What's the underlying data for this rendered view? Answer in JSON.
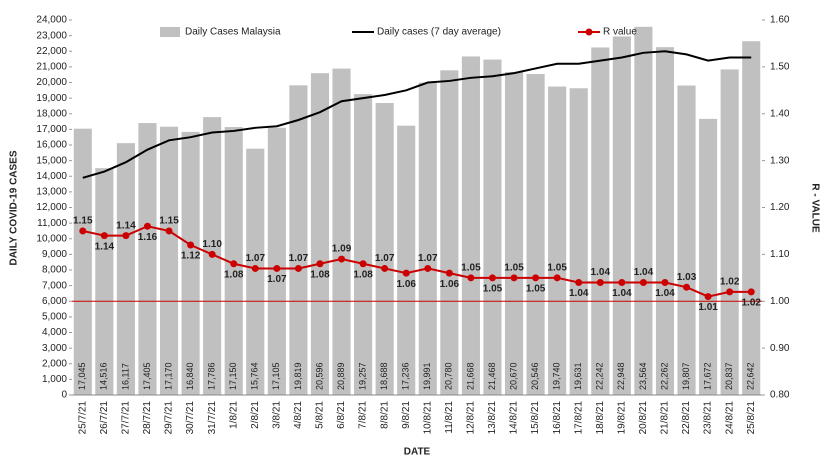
{
  "chart_data": {
    "type": "combo",
    "categories": [
      "25/7/21",
      "26/7/21",
      "27/7/21",
      "28/7/21",
      "29/7/21",
      "30/7/21",
      "31/7/21",
      "1/8/21",
      "2/8/21",
      "3/8/21",
      "4/8/21",
      "5/8/21",
      "6/8/21",
      "7/8/21",
      "8/8/21",
      "9/8/21",
      "10/8/21",
      "11/8/21",
      "12/8/21",
      "13/8/21",
      "14/8/21",
      "15/8/21",
      "16/8/21",
      "17/8/21",
      "18/8/21",
      "19/8/21",
      "20/8/21",
      "21/8/21",
      "22/8/21",
      "23/8/21",
      "24/8/21",
      "25/8/21"
    ],
    "x_label": "DATE",
    "y_label": "DAILY COVID-19 CASES",
    "y2_label": "R - VALUE",
    "series": [
      {
        "name": "Daily Cases Malaysia",
        "type": "bar",
        "axis": "y",
        "color": "#c0c0c0",
        "values": [
          17045,
          14516,
          16117,
          17405,
          17170,
          16840,
          17786,
          17150,
          15764,
          17105,
          19819,
          20596,
          20889,
          19257,
          18688,
          17236,
          19991,
          20780,
          21668,
          21468,
          20670,
          20546,
          19740,
          19631,
          22242,
          22948,
          23564,
          22262,
          19807,
          17672,
          20837,
          22642
        ],
        "value_labels": [
          "17,045",
          "14,516",
          "16,117",
          "17,405",
          "17,170",
          "16,840",
          "17,786",
          "17,150",
          "15,764",
          "17,105",
          "19,819",
          "20,596",
          "20,889",
          "19,257",
          "18,688",
          "17,236",
          "19,991",
          "20,780",
          "21,668",
          "21,468",
          "20,670",
          "20,546",
          "19,740",
          "19,631",
          "22,242",
          "22,948",
          "23,564",
          "22,262",
          "19,807",
          "17,672",
          "20,837",
          "22,642"
        ]
      },
      {
        "name": "Daily cases (7 day average)",
        "type": "line",
        "axis": "y",
        "color": "#000000",
        "values": [
          13900,
          14300,
          14900,
          15700,
          16300,
          16500,
          16800,
          16900,
          17100,
          17200,
          17600,
          18100,
          18800,
          19000,
          19200,
          19500,
          20000,
          20100,
          20300,
          20400,
          20600,
          20900,
          21200,
          21200,
          21400,
          21600,
          21900,
          22000,
          21800,
          21400,
          21600,
          21600
        ]
      },
      {
        "name": "R value",
        "type": "line-marker",
        "axis": "y2",
        "color": "#cc0000",
        "values": [
          1.15,
          1.14,
          1.14,
          1.16,
          1.15,
          1.12,
          1.1,
          1.08,
          1.07,
          1.07,
          1.07,
          1.08,
          1.09,
          1.08,
          1.07,
          1.06,
          1.07,
          1.06,
          1.05,
          1.05,
          1.05,
          1.05,
          1.05,
          1.04,
          1.04,
          1.04,
          1.04,
          1.04,
          1.03,
          1.01,
          1.02,
          1.02
        ],
        "value_labels": [
          "1.15",
          "1.14",
          "1.14",
          "1.16",
          "1.15",
          "1.12",
          "1.10",
          "1.08",
          "1.07",
          "1.07",
          "1.07",
          "1.08",
          "1.09",
          "1.08",
          "1.07",
          "1.06",
          "1.07",
          "1.06",
          "1.05",
          "1.05",
          "1.05",
          "1.05",
          "1.05",
          "1.04",
          "1.04",
          "1.04",
          "1.04",
          "1.04",
          "1.03",
          "1.01",
          "1.02",
          "1.02"
        ]
      }
    ],
    "ylim": [
      0,
      24000
    ],
    "yticks": [
      0,
      {
        "value": 1000,
        "label": "1,000"
      },
      {
        "value": 2000,
        "label": "2,000"
      },
      {
        "value": 3000,
        "label": "3,000"
      },
      {
        "value": 4000,
        "label": "4,000"
      },
      {
        "value": 5000,
        "label": "5,000"
      },
      {
        "value": 6000,
        "label": "6,000"
      },
      {
        "value": 7000,
        "label": "7,000"
      },
      {
        "value": 8000,
        "label": "8,000"
      },
      {
        "value": 9000,
        "label": "9,000"
      },
      {
        "value": 10000,
        "label": "10,000"
      },
      {
        "value": 11000,
        "label": "11,000"
      },
      {
        "value": 12000,
        "label": "12,000"
      },
      {
        "value": 13000,
        "label": "13,000"
      },
      {
        "value": 14000,
        "label": "14,000"
      },
      {
        "value": 15000,
        "label": "15,000"
      },
      {
        "value": 16000,
        "label": "16,000"
      },
      {
        "value": 17000,
        "label": "17,000"
      },
      {
        "value": 18000,
        "label": "18,000"
      },
      {
        "value": 19000,
        "label": "19,000"
      },
      {
        "value": 20000,
        "label": "20,000"
      },
      {
        "value": 21000,
        "label": "21,000"
      },
      {
        "value": 22000,
        "label": "22,000"
      },
      {
        "value": 23000,
        "label": "23,000"
      },
      {
        "value": 24000,
        "label": "24,000"
      }
    ],
    "y2lim": [
      0.8,
      1.6
    ],
    "y2ticks": [
      {
        "value": 0.8,
        "label": "0.80"
      },
      {
        "value": 0.9,
        "label": "0.90"
      },
      {
        "value": 1.0,
        "label": "1.00"
      },
      {
        "value": 1.1,
        "label": "1.10"
      },
      {
        "value": 1.2,
        "label": "1.20"
      },
      {
        "value": 1.3,
        "label": "1.30"
      },
      {
        "value": 1.4,
        "label": "1.40"
      },
      {
        "value": 1.5,
        "label": "1.50"
      },
      {
        "value": 1.6,
        "label": "1.60"
      }
    ],
    "y2_refline": 1.0,
    "grid": false
  }
}
